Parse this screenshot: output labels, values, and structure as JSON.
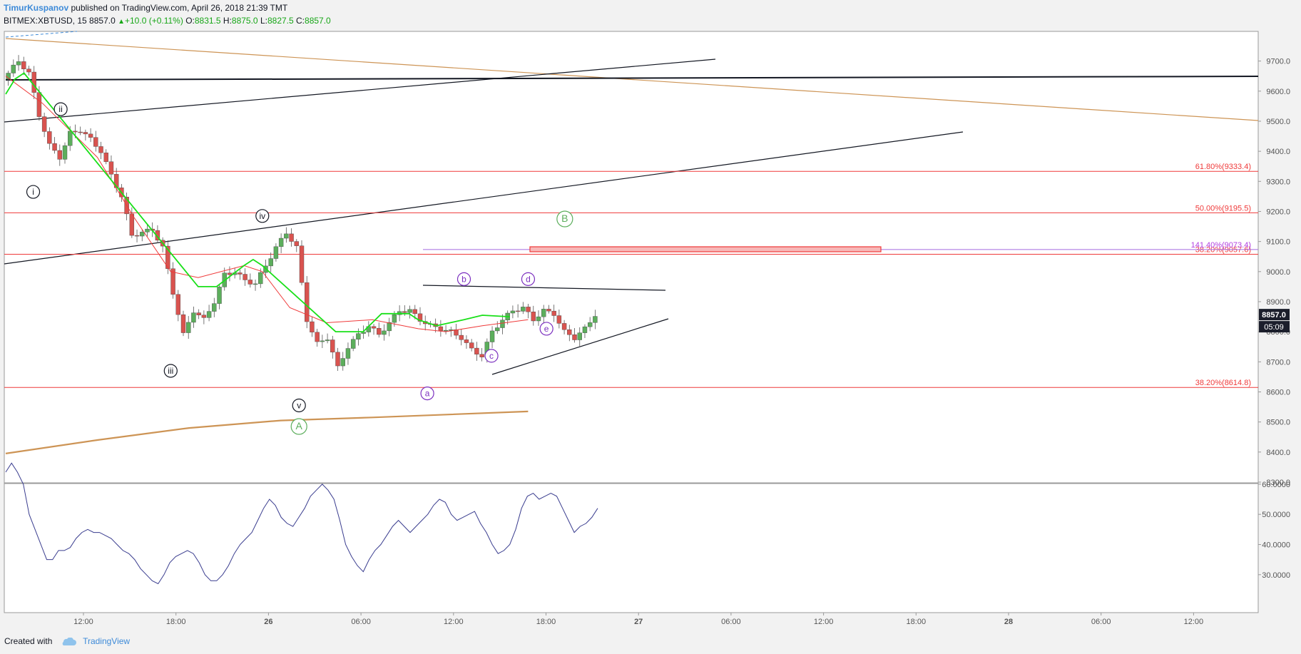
{
  "header": {
    "author": "TimurKuspanov",
    "published": "published on TradingView.com, April 26, 2018 21:39 TMT",
    "symbol": "BITMEX:XBTUSD, 15",
    "last": "8857.0",
    "change": "+10.0 (+0.11%)",
    "o_label": "O:",
    "o": "8831.5",
    "h_label": "H:",
    "h": "8875.0",
    "l_label": "L:",
    "l": "8827.5",
    "c_label": "C:",
    "c": "8857.0"
  },
  "footer": {
    "created_with": "Created with",
    "brand": "TradingView"
  },
  "colors": {
    "up": "#5cae5c",
    "down": "#d9534f",
    "fib": "#ef3a3a",
    "ema_fast": "#ef3a3a",
    "ema_mid": "#19e019",
    "ema_slow": "#cd9455",
    "rsi": "#3a3d8f",
    "wave_black": "#131722",
    "wave_purple": "#7b2fbf",
    "wave_green": "#5cae5c"
  },
  "chart_data": [
    {
      "type": "candlestick",
      "title": "",
      "ylim": [
        8300,
        9800
      ],
      "y_ticks": [
        "9700.0",
        "9600.0",
        "9500.0",
        "9400.0",
        "9300.0",
        "9200.0",
        "9100.0",
        "9000.0",
        "8900.0",
        "8800.0",
        "8700.0",
        "8600.0",
        "8500.0",
        "8400.0",
        "8300.0"
      ],
      "x_ticks": [
        "12:00",
        "18:00",
        "26",
        "06:00",
        "12:00",
        "18:00",
        "27",
        "06:00",
        "12:00",
        "18:00",
        "28",
        "06:00",
        "12:00"
      ],
      "last_price_label": "8857.0",
      "countdown_label": "05:09",
      "price_path": [
        [
          0,
          9640
        ],
        [
          1.5,
          9700
        ],
        [
          2,
          9660
        ],
        [
          3,
          9520
        ],
        [
          4,
          9420
        ],
        [
          5,
          9380
        ],
        [
          6,
          9460
        ],
        [
          7,
          9470
        ],
        [
          8,
          9440
        ],
        [
          9,
          9400
        ],
        [
          10,
          9320
        ],
        [
          11,
          9250
        ],
        [
          12,
          9120
        ],
        [
          13,
          9130
        ],
        [
          14,
          9140
        ],
        [
          15,
          9080
        ],
        [
          16,
          8930
        ],
        [
          17,
          8790
        ],
        [
          18,
          8870
        ],
        [
          19,
          8840
        ],
        [
          20,
          8900
        ],
        [
          21,
          8990
        ],
        [
          22,
          9000
        ],
        [
          23,
          8970
        ],
        [
          24,
          8960
        ],
        [
          25,
          9020
        ],
        [
          26,
          9080
        ],
        [
          27,
          9130
        ],
        [
          28,
          9080
        ],
        [
          29,
          8840
        ],
        [
          30,
          8760
        ],
        [
          31,
          8780
        ],
        [
          32,
          8680
        ],
        [
          33,
          8750
        ],
        [
          34,
          8790
        ],
        [
          35,
          8820
        ],
        [
          36,
          8790
        ],
        [
          37,
          8830
        ],
        [
          38,
          8870
        ],
        [
          39,
          8870
        ],
        [
          40,
          8840
        ],
        [
          41,
          8820
        ],
        [
          42,
          8810
        ],
        [
          43,
          8800
        ],
        [
          44,
          8780
        ],
        [
          45,
          8740
        ],
        [
          46,
          8720
        ],
        [
          47,
          8800
        ],
        [
          48,
          8840
        ],
        [
          49,
          8870
        ],
        [
          50,
          8880
        ],
        [
          51,
          8840
        ],
        [
          52,
          8870
        ],
        [
          53,
          8860
        ],
        [
          54,
          8800
        ],
        [
          55,
          8780
        ],
        [
          56,
          8810
        ],
        [
          57,
          8857
        ]
      ],
      "series": [
        {
          "name": "",
          "color": "#ef3a3a",
          "points": [
            [
              0,
              9650
            ],
            [
              4,
              9560
            ],
            [
              10,
              9380
            ],
            [
              14,
              9180
            ],
            [
              18,
              9000
            ],
            [
              21,
              8980
            ],
            [
              26,
              9020
            ],
            [
              28,
              9000
            ],
            [
              31,
              8880
            ],
            [
              35,
              8830
            ],
            [
              40,
              8840
            ],
            [
              45,
              8810
            ],
            [
              48,
              8800
            ],
            [
              52,
              8820
            ],
            [
              57,
              8840
            ]
          ]
        },
        {
          "name": "",
          "color": "#19e019",
          "points": [
            [
              0,
              9590
            ],
            [
              1,
              9640
            ],
            [
              2,
              9660
            ],
            [
              21,
              8950
            ],
            [
              23,
              8950
            ],
            [
              26,
              9020
            ],
            [
              27,
              9040
            ],
            [
              28,
              9020
            ],
            [
              36,
              8800
            ],
            [
              39,
              8800
            ],
            [
              41,
              8860
            ],
            [
              44,
              8860
            ],
            [
              45,
              8840
            ],
            [
              47,
              8820
            ],
            [
              50,
              8840
            ],
            [
              52,
              8855
            ],
            [
              55,
              8850
            ]
          ]
        },
        {
          "name": "",
          "color": "#cd9455",
          "points": [
            [
              0,
              8395
            ],
            [
              10,
              8440
            ],
            [
              20,
              8480
            ],
            [
              30,
              8505
            ],
            [
              40,
              8515
            ],
            [
              57,
              8535
            ]
          ]
        }
      ],
      "fib_levels": [
        {
          "label": "61.80%(9333.4)",
          "price": 9333.4
        },
        {
          "label": "50.00%(9195.5)",
          "price": 9195.5
        },
        {
          "label": "38.20%(9057.6)",
          "price": 9057.6
        },
        {
          "label": "38.20%(8614.8)",
          "price": 8614.8
        },
        {
          "label": "141.40%(9073.4)",
          "price": 9073.4
        }
      ],
      "wave_labels": [
        {
          "text": "i",
          "price": 9265,
          "bar": 3,
          "color": "black"
        },
        {
          "text": "ii",
          "price": 9540,
          "bar": 6,
          "color": "black"
        },
        {
          "text": "iii",
          "price": 8670,
          "bar": 18,
          "color": "black"
        },
        {
          "text": "iv",
          "price": 9185,
          "bar": 28,
          "color": "black"
        },
        {
          "text": "v",
          "price": 8555,
          "bar": 32,
          "color": "black"
        },
        {
          "text": "A",
          "price": 8485,
          "bar": 32,
          "color": "green"
        },
        {
          "text": "B",
          "price": 9175,
          "bar": 61,
          "color": "green"
        },
        {
          "text": "a",
          "price": 8595,
          "bar": 46,
          "color": "purple"
        },
        {
          "text": "b",
          "price": 8975,
          "bar": 50,
          "color": "purple"
        },
        {
          "text": "c",
          "price": 8720,
          "bar": 53,
          "color": "purple"
        },
        {
          "text": "d",
          "price": 8975,
          "bar": 57,
          "color": "purple"
        },
        {
          "text": "e",
          "price": 8810,
          "bar": 59,
          "color": "purple"
        }
      ]
    },
    {
      "type": "line",
      "title": "",
      "ylim": [
        23,
        70
      ],
      "y_ticks": [
        "60.0000",
        "50.0000",
        "40.0000",
        "30.0000"
      ],
      "series": [
        {
          "name": "",
          "values": [
            64,
            67,
            64,
            60,
            50,
            45,
            40,
            35,
            35,
            38,
            38,
            39,
            42,
            44,
            45,
            44,
            44,
            43,
            42,
            40,
            38,
            37,
            35,
            32,
            30,
            28,
            27,
            30,
            34,
            36,
            37,
            38,
            37,
            34,
            30,
            28,
            28,
            30,
            33,
            37,
            40,
            42,
            44,
            48,
            52,
            55,
            53,
            49,
            47,
            46,
            49,
            52,
            56,
            58,
            60,
            58,
            55,
            48,
            40,
            36,
            33,
            31,
            35,
            38,
            40,
            43,
            46,
            48,
            46,
            44,
            46,
            48,
            50,
            53,
            55,
            54,
            50,
            48,
            49,
            50,
            51,
            47,
            44,
            40,
            37,
            38,
            40,
            45,
            52,
            56,
            57,
            55,
            56,
            57,
            56,
            52,
            48,
            44,
            46,
            47,
            49,
            52
          ]
        }
      ]
    }
  ]
}
